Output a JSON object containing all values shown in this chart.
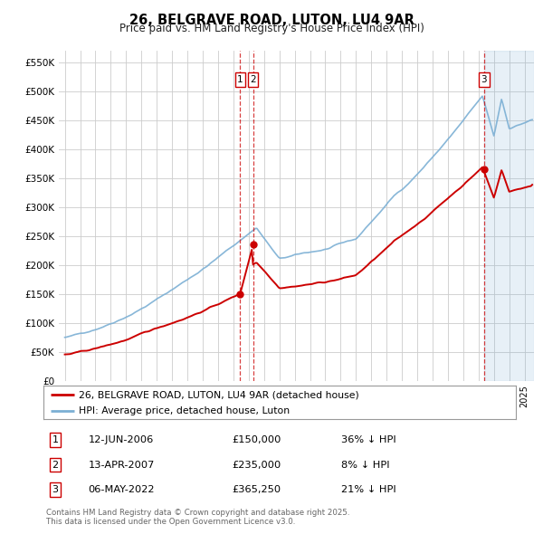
{
  "title": "26, BELGRAVE ROAD, LUTON, LU4 9AR",
  "subtitle": "Price paid vs. HM Land Registry's House Price Index (HPI)",
  "legend_line1": "26, BELGRAVE ROAD, LUTON, LU4 9AR (detached house)",
  "legend_line2": "HPI: Average price, detached house, Luton",
  "ylim": [
    0,
    570000
  ],
  "yticks": [
    0,
    50000,
    100000,
    150000,
    200000,
    250000,
    300000,
    350000,
    400000,
    450000,
    500000,
    550000
  ],
  "ytick_labels": [
    "£0",
    "£50K",
    "£100K",
    "£150K",
    "£200K",
    "£250K",
    "£300K",
    "£350K",
    "£400K",
    "£450K",
    "£500K",
    "£550K"
  ],
  "transaction_years": [
    2006.45,
    2007.28,
    2022.35
  ],
  "transaction_prices": [
    150000,
    235000,
    365250
  ],
  "annotation_labels": [
    "1",
    "2",
    "3"
  ],
  "annotation_info": [
    {
      "label": "1",
      "date": "12-JUN-2006",
      "price": "£150,000",
      "hpi": "36% ↓ HPI"
    },
    {
      "label": "2",
      "date": "13-APR-2007",
      "price": "£235,000",
      "hpi": "8% ↓ HPI"
    },
    {
      "label": "3",
      "date": "06-MAY-2022",
      "price": "£365,250",
      "hpi": "21% ↓ HPI"
    }
  ],
  "footer": "Contains HM Land Registry data © Crown copyright and database right 2025.\nThis data is licensed under the Open Government Licence v3.0.",
  "hpi_color": "#7bafd4",
  "price_color": "#cc0000",
  "vline_color": "#cc0000",
  "background_color": "#ffffff",
  "grid_color": "#cccccc",
  "shade_color": "#ddeeff"
}
